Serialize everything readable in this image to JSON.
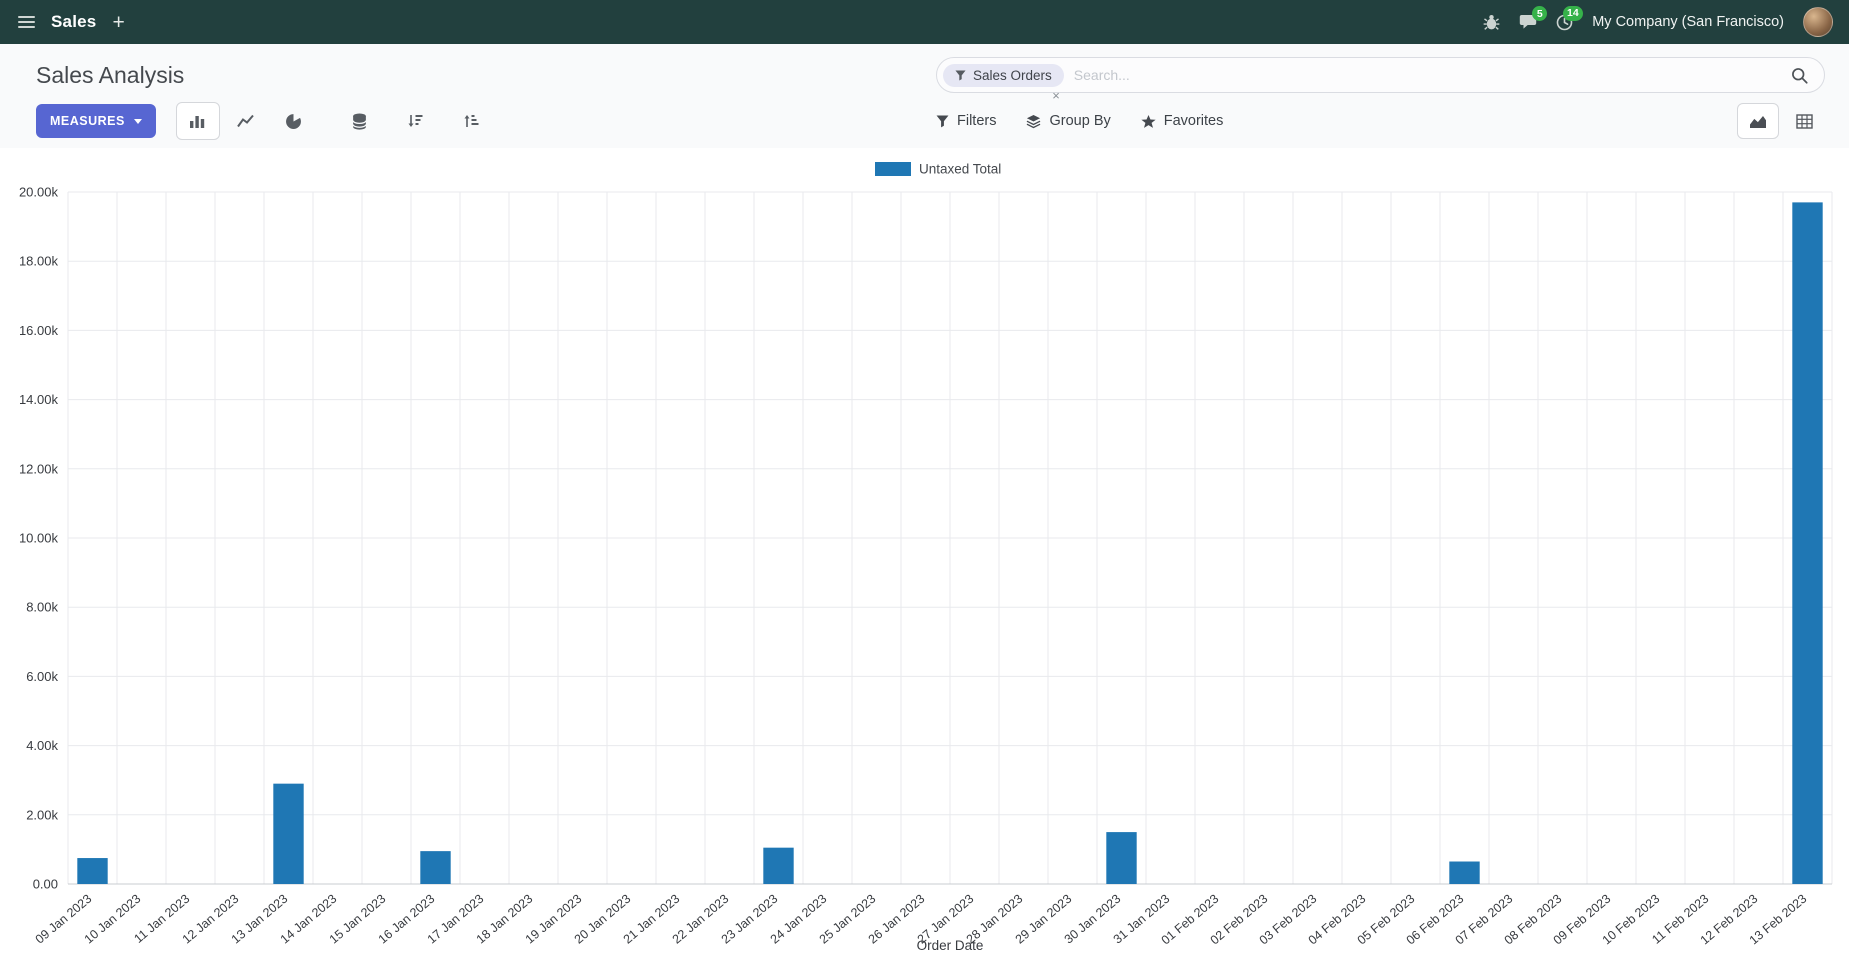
{
  "colors": {
    "navbar_bg": "#22403e",
    "primary_button": "#5766d2",
    "badge_green": "#36b24a",
    "bar": "#1f77b4",
    "facet_bg": "#e6e7f4"
  },
  "navbar": {
    "app_name": "Sales",
    "new_button": "+",
    "messages_badge": "5",
    "activities_badge": "14",
    "company": "My Company (San Francisco)"
  },
  "control_panel": {
    "title": "Sales Analysis",
    "search": {
      "facet_label": "Sales Orders",
      "facet_remove": "×",
      "placeholder": "Search..."
    },
    "measures_label": "MEASURES",
    "filters_label": "Filters",
    "group_by_label": "Group By",
    "favorites_label": "Favorites"
  },
  "chart_data": {
    "type": "bar",
    "title": "",
    "legend": [
      "Untaxed Total"
    ],
    "xlabel": "Order Date",
    "ylabel": "",
    "ylim": [
      0,
      20000
    ],
    "grid": true,
    "legend_position": "top-center",
    "y_ticks": [
      "0.00",
      "2.00k",
      "4.00k",
      "6.00k",
      "8.00k",
      "10.00k",
      "12.00k",
      "14.00k",
      "16.00k",
      "18.00k",
      "20.00k"
    ],
    "categories": [
      "09 Jan 2023",
      "10 Jan 2023",
      "11 Jan 2023",
      "12 Jan 2023",
      "13 Jan 2023",
      "14 Jan 2023",
      "15 Jan 2023",
      "16 Jan 2023",
      "17 Jan 2023",
      "18 Jan 2023",
      "19 Jan 2023",
      "20 Jan 2023",
      "21 Jan 2023",
      "22 Jan 2023",
      "23 Jan 2023",
      "24 Jan 2023",
      "25 Jan 2023",
      "26 Jan 2023",
      "27 Jan 2023",
      "28 Jan 2023",
      "29 Jan 2023",
      "30 Jan 2023",
      "31 Jan 2023",
      "01 Feb 2023",
      "02 Feb 2023",
      "03 Feb 2023",
      "04 Feb 2023",
      "05 Feb 2023",
      "06 Feb 2023",
      "07 Feb 2023",
      "08 Feb 2023",
      "09 Feb 2023",
      "10 Feb 2023",
      "11 Feb 2023",
      "12 Feb 2023",
      "13 Feb 2023"
    ],
    "values": [
      750,
      0,
      0,
      0,
      2900,
      0,
      0,
      950,
      0,
      0,
      0,
      0,
      0,
      0,
      1050,
      0,
      0,
      0,
      0,
      0,
      0,
      1500,
      0,
      0,
      0,
      0,
      0,
      0,
      650,
      0,
      0,
      0,
      0,
      0,
      0,
      19700
    ]
  }
}
